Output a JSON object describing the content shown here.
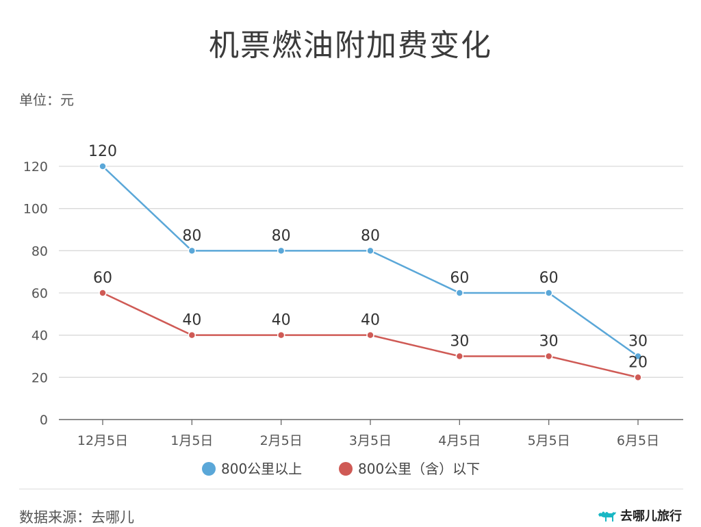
{
  "unit_label": "单位：元",
  "source_label": "数据来源：去哪儿",
  "brand": {
    "name": "去哪儿旅行",
    "icon": "camel-icon",
    "color": "#19b7c4"
  },
  "colors": {
    "series_0": "#5aa7d8",
    "series_1": "#cf5a55",
    "grid": "#d9d9d9",
    "axis": "#555555"
  },
  "chart_data": {
    "type": "line",
    "title": "机票燃油附加费变化",
    "categories": [
      "12月5日",
      "1月5日",
      "2月5日",
      "3月5日",
      "4月5日",
      "5月5日",
      "6月5日"
    ],
    "series": [
      {
        "name": "800公里以上",
        "values": [
          120,
          80,
          80,
          80,
          60,
          60,
          30
        ]
      },
      {
        "name": "800公里（含）以下",
        "values": [
          60,
          40,
          40,
          40,
          30,
          30,
          20
        ]
      }
    ],
    "ylim": [
      0,
      120
    ],
    "yticks": [
      0,
      20,
      40,
      60,
      80,
      100,
      120
    ],
    "ylabel": "",
    "xlabel": "",
    "grid": true,
    "legend": "bottom"
  }
}
